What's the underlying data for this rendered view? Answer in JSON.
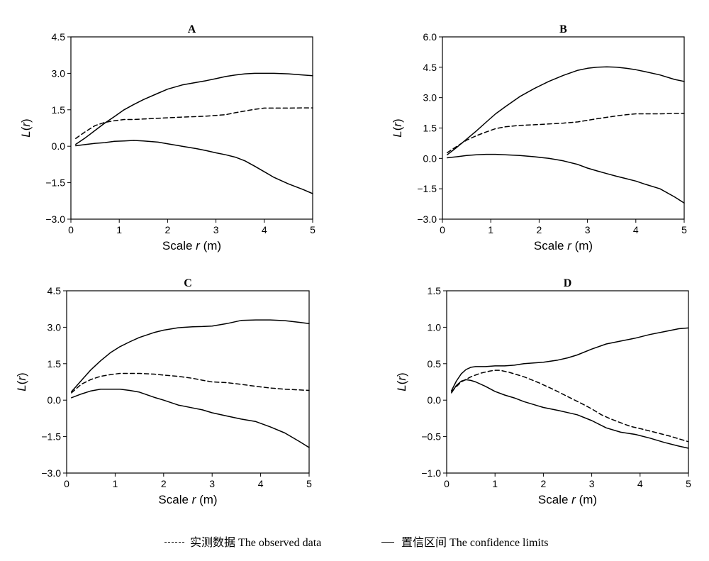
{
  "chart_data": [
    {
      "type": "line",
      "title": "A",
      "xlabel": "Scale r (m)",
      "ylabel": "L(r)",
      "xlim": [
        0,
        5
      ],
      "ylim": [
        -3.0,
        4.5
      ],
      "xticks": [
        "0",
        "1",
        "2",
        "3",
        "4",
        "5"
      ],
      "yticks": [
        "4.5",
        "3.0",
        "1.5",
        "0.0",
        "-1.5",
        "-3.0"
      ],
      "grid": false,
      "series": [
        {
          "style": "dashed",
          "x": [
            0.1,
            0.3,
            0.5,
            0.7,
            0.9,
            1.1,
            1.3,
            1.5,
            1.8,
            2.0,
            2.3,
            2.6,
            2.8,
            3.0,
            3.2,
            3.4,
            3.6,
            3.8,
            4.0,
            4.2,
            4.5,
            4.8,
            5.0
          ],
          "y": [
            0.32,
            0.6,
            0.85,
            0.98,
            1.05,
            1.1,
            1.1,
            1.12,
            1.15,
            1.17,
            1.2,
            1.22,
            1.24,
            1.27,
            1.3,
            1.38,
            1.45,
            1.52,
            1.57,
            1.57,
            1.57,
            1.58,
            1.58
          ]
        },
        {
          "style": "solid",
          "x": [
            0.1,
            0.3,
            0.5,
            0.7,
            0.9,
            1.1,
            1.3,
            1.5,
            1.8,
            2.0,
            2.3,
            2.6,
            2.8,
            3.0,
            3.2,
            3.4,
            3.6,
            3.8,
            4.0,
            4.2,
            4.5,
            4.8,
            5.0
          ],
          "y": [
            0.08,
            0.35,
            0.65,
            0.95,
            1.22,
            1.5,
            1.72,
            1.92,
            2.18,
            2.35,
            2.52,
            2.63,
            2.7,
            2.78,
            2.87,
            2.93,
            2.98,
            3.0,
            3.0,
            3.0,
            2.98,
            2.93,
            2.9
          ]
        },
        {
          "style": "solid",
          "x": [
            0.1,
            0.3,
            0.5,
            0.7,
            0.9,
            1.1,
            1.3,
            1.5,
            1.8,
            2.0,
            2.3,
            2.6,
            2.8,
            3.0,
            3.2,
            3.4,
            3.6,
            3.8,
            4.0,
            4.2,
            4.5,
            4.8,
            5.0
          ],
          "y": [
            0.02,
            0.07,
            0.12,
            0.15,
            0.2,
            0.22,
            0.24,
            0.22,
            0.17,
            0.1,
            0.0,
            -0.1,
            -0.18,
            -0.27,
            -0.35,
            -0.45,
            -0.6,
            -0.82,
            -1.05,
            -1.28,
            -1.55,
            -1.78,
            -1.95
          ]
        }
      ]
    },
    {
      "type": "line",
      "title": "B",
      "xlabel": "Scale r (m)",
      "ylabel": "L(r)",
      "xlim": [
        0,
        5
      ],
      "ylim": [
        -3.0,
        6.0
      ],
      "xticks": [
        "0",
        "1",
        "2",
        "3",
        "4",
        "5"
      ],
      "yticks": [
        "6.0",
        "4.5",
        "3.0",
        "1.5",
        "0.0",
        "-1.5",
        "-3.0"
      ],
      "grid": false,
      "series": [
        {
          "style": "dashed",
          "x": [
            0.1,
            0.3,
            0.5,
            0.7,
            0.9,
            1.1,
            1.3,
            1.6,
            1.9,
            2.2,
            2.5,
            2.8,
            3.0,
            3.2,
            3.4,
            3.6,
            3.8,
            4.0,
            4.2,
            4.5,
            4.8,
            5.0
          ],
          "y": [
            0.28,
            0.6,
            0.9,
            1.12,
            1.3,
            1.47,
            1.56,
            1.63,
            1.66,
            1.7,
            1.74,
            1.8,
            1.88,
            1.96,
            2.03,
            2.1,
            2.16,
            2.2,
            2.2,
            2.2,
            2.22,
            2.22
          ]
        },
        {
          "style": "solid",
          "x": [
            0.1,
            0.3,
            0.5,
            0.7,
            0.9,
            1.1,
            1.3,
            1.6,
            1.9,
            2.2,
            2.5,
            2.8,
            3.0,
            3.2,
            3.4,
            3.6,
            3.8,
            4.0,
            4.2,
            4.5,
            4.8,
            5.0
          ],
          "y": [
            0.18,
            0.55,
            0.95,
            1.35,
            1.78,
            2.2,
            2.55,
            3.05,
            3.45,
            3.8,
            4.1,
            4.35,
            4.45,
            4.5,
            4.52,
            4.5,
            4.45,
            4.38,
            4.28,
            4.12,
            3.9,
            3.8
          ]
        },
        {
          "style": "solid",
          "x": [
            0.1,
            0.3,
            0.5,
            0.7,
            0.9,
            1.1,
            1.3,
            1.6,
            1.9,
            2.2,
            2.5,
            2.8,
            3.0,
            3.2,
            3.4,
            3.6,
            3.8,
            4.0,
            4.2,
            4.5,
            4.8,
            5.0
          ],
          "y": [
            0.03,
            0.08,
            0.14,
            0.18,
            0.2,
            0.2,
            0.18,
            0.14,
            0.08,
            0.0,
            -0.12,
            -0.3,
            -0.48,
            -0.62,
            -0.75,
            -0.88,
            -1.0,
            -1.12,
            -1.28,
            -1.5,
            -1.9,
            -2.2
          ]
        }
      ]
    },
    {
      "type": "line",
      "title": "C",
      "xlabel": "Scale r (m)",
      "ylabel": "L(r)",
      "xlim": [
        0,
        5
      ],
      "ylim": [
        -3.0,
        4.5
      ],
      "xticks": [
        "0",
        "1",
        "2",
        "3",
        "4",
        "5"
      ],
      "yticks": [
        "4.5",
        "3.0",
        "1.5",
        "0.0",
        "-1.5",
        "-3.0"
      ],
      "grid": false,
      "series": [
        {
          "style": "dashed",
          "x": [
            0.1,
            0.3,
            0.5,
            0.7,
            0.9,
            1.1,
            1.3,
            1.5,
            1.8,
            2.0,
            2.3,
            2.6,
            2.8,
            3.0,
            3.3,
            3.6,
            3.9,
            4.2,
            4.5,
            4.8,
            5.0
          ],
          "y": [
            0.3,
            0.65,
            0.85,
            0.98,
            1.05,
            1.1,
            1.1,
            1.1,
            1.07,
            1.03,
            0.98,
            0.9,
            0.82,
            0.75,
            0.72,
            0.65,
            0.57,
            0.5,
            0.45,
            0.42,
            0.4
          ]
        },
        {
          "style": "solid",
          "x": [
            0.1,
            0.3,
            0.5,
            0.7,
            0.9,
            1.1,
            1.3,
            1.5,
            1.8,
            2.0,
            2.3,
            2.6,
            2.8,
            3.0,
            3.3,
            3.6,
            3.9,
            4.2,
            4.5,
            4.8,
            5.0
          ],
          "y": [
            0.35,
            0.8,
            1.25,
            1.62,
            1.95,
            2.2,
            2.4,
            2.58,
            2.78,
            2.88,
            2.98,
            3.02,
            3.03,
            3.05,
            3.15,
            3.28,
            3.3,
            3.3,
            3.27,
            3.2,
            3.15
          ]
        },
        {
          "style": "solid",
          "x": [
            0.1,
            0.3,
            0.5,
            0.7,
            0.9,
            1.1,
            1.3,
            1.5,
            1.8,
            2.0,
            2.3,
            2.6,
            2.8,
            3.0,
            3.3,
            3.6,
            3.9,
            4.2,
            4.5,
            4.8,
            5.0
          ],
          "y": [
            0.1,
            0.25,
            0.38,
            0.45,
            0.45,
            0.45,
            0.4,
            0.33,
            0.12,
            0.0,
            -0.2,
            -0.32,
            -0.4,
            -0.52,
            -0.65,
            -0.78,
            -0.88,
            -1.1,
            -1.35,
            -1.7,
            -1.95
          ]
        }
      ]
    },
    {
      "type": "line",
      "title": "D",
      "xlabel": "Scale r (m)",
      "ylabel": "L(r)",
      "xlim": [
        0,
        5
      ],
      "ylim": [
        -1.0,
        1.5
      ],
      "xticks": [
        "0",
        "1",
        "2",
        "3",
        "4",
        "5"
      ],
      "yticks": [
        "1.5",
        "1.0",
        "0.5",
        "0.0",
        "-0.5",
        "-1.0"
      ],
      "grid": false,
      "series": [
        {
          "style": "dashed",
          "x": [
            0.1,
            0.3,
            0.5,
            0.7,
            0.9,
            1.0,
            1.1,
            1.3,
            1.6,
            1.9,
            2.2,
            2.5,
            2.8,
            3.0,
            3.2,
            3.4,
            3.6,
            3.8,
            4.0,
            4.3,
            4.6,
            4.8,
            5.0
          ],
          "y": [
            0.12,
            0.25,
            0.32,
            0.37,
            0.4,
            0.41,
            0.41,
            0.38,
            0.32,
            0.24,
            0.15,
            0.05,
            -0.05,
            -0.12,
            -0.2,
            -0.26,
            -0.31,
            -0.36,
            -0.39,
            -0.44,
            -0.49,
            -0.53,
            -0.57
          ]
        },
        {
          "style": "solid",
          "x": [
            0.1,
            0.2,
            0.3,
            0.4,
            0.5,
            0.6,
            0.8,
            1.0,
            1.2,
            1.4,
            1.6,
            2.0,
            2.3,
            2.5,
            2.7,
            3.0,
            3.3,
            3.6,
            3.9,
            4.2,
            4.5,
            4.8,
            5.0
          ],
          "y": [
            0.13,
            0.26,
            0.36,
            0.42,
            0.45,
            0.46,
            0.46,
            0.47,
            0.47,
            0.48,
            0.5,
            0.52,
            0.55,
            0.58,
            0.62,
            0.7,
            0.77,
            0.81,
            0.85,
            0.9,
            0.94,
            0.98,
            0.99
          ]
        },
        {
          "style": "solid",
          "x": [
            0.1,
            0.2,
            0.3,
            0.4,
            0.5,
            0.6,
            0.8,
            1.0,
            1.2,
            1.4,
            1.6,
            2.0,
            2.3,
            2.5,
            2.7,
            3.0,
            3.3,
            3.6,
            3.9,
            4.2,
            4.5,
            4.8,
            5.0
          ],
          "y": [
            0.1,
            0.2,
            0.26,
            0.28,
            0.27,
            0.25,
            0.19,
            0.12,
            0.07,
            0.03,
            -0.02,
            -0.1,
            -0.14,
            -0.17,
            -0.2,
            -0.28,
            -0.38,
            -0.44,
            -0.47,
            -0.52,
            -0.58,
            -0.63,
            -0.66
          ]
        }
      ]
    }
  ],
  "legend": {
    "observed": "实测数据  The observed data",
    "confidence": "置信区间  The confidence limits"
  }
}
